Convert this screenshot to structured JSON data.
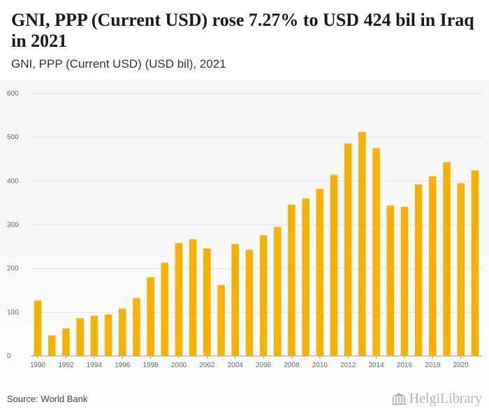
{
  "header": {
    "title": "GNI, PPP (Current USD) rose 7.27% to USD 424 bil in Iraq in 2021",
    "subtitle": "GNI, PPP (Current USD) (USD bil), 2021"
  },
  "footer": {
    "source": "Source: World Bank",
    "logo_text": "HelgiLibrary"
  },
  "colors": {
    "bar": "#f8b100",
    "grid": "#e2e2e2"
  },
  "chart_data": {
    "type": "bar",
    "categories": [
      "1990",
      "1991",
      "1992",
      "1993",
      "1994",
      "1995",
      "1996",
      "1997",
      "1998",
      "1999",
      "2000",
      "2001",
      "2002",
      "2003",
      "2004",
      "2005",
      "2006",
      "2007",
      "2008",
      "2009",
      "2010",
      "2011",
      "2012",
      "2013",
      "2014",
      "2015",
      "2016",
      "2017",
      "2018",
      "2019",
      "2020",
      "2021"
    ],
    "x_tick_labels": [
      "1990",
      "1992",
      "1994",
      "1996",
      "1998",
      "2000",
      "2002",
      "2004",
      "2006",
      "2008",
      "2010",
      "2012",
      "2014",
      "2016",
      "2018",
      "2020"
    ],
    "values": [
      127,
      47,
      63,
      86,
      92,
      95,
      108,
      132,
      180,
      213,
      258,
      267,
      246,
      162,
      256,
      243,
      276,
      295,
      346,
      360,
      382,
      414,
      486,
      512,
      475,
      344,
      341,
      392,
      411,
      443,
      395,
      424
    ],
    "ylim": [
      0,
      600
    ],
    "yticks": [
      0,
      100,
      200,
      300,
      400,
      500,
      600
    ],
    "grid": true
  }
}
